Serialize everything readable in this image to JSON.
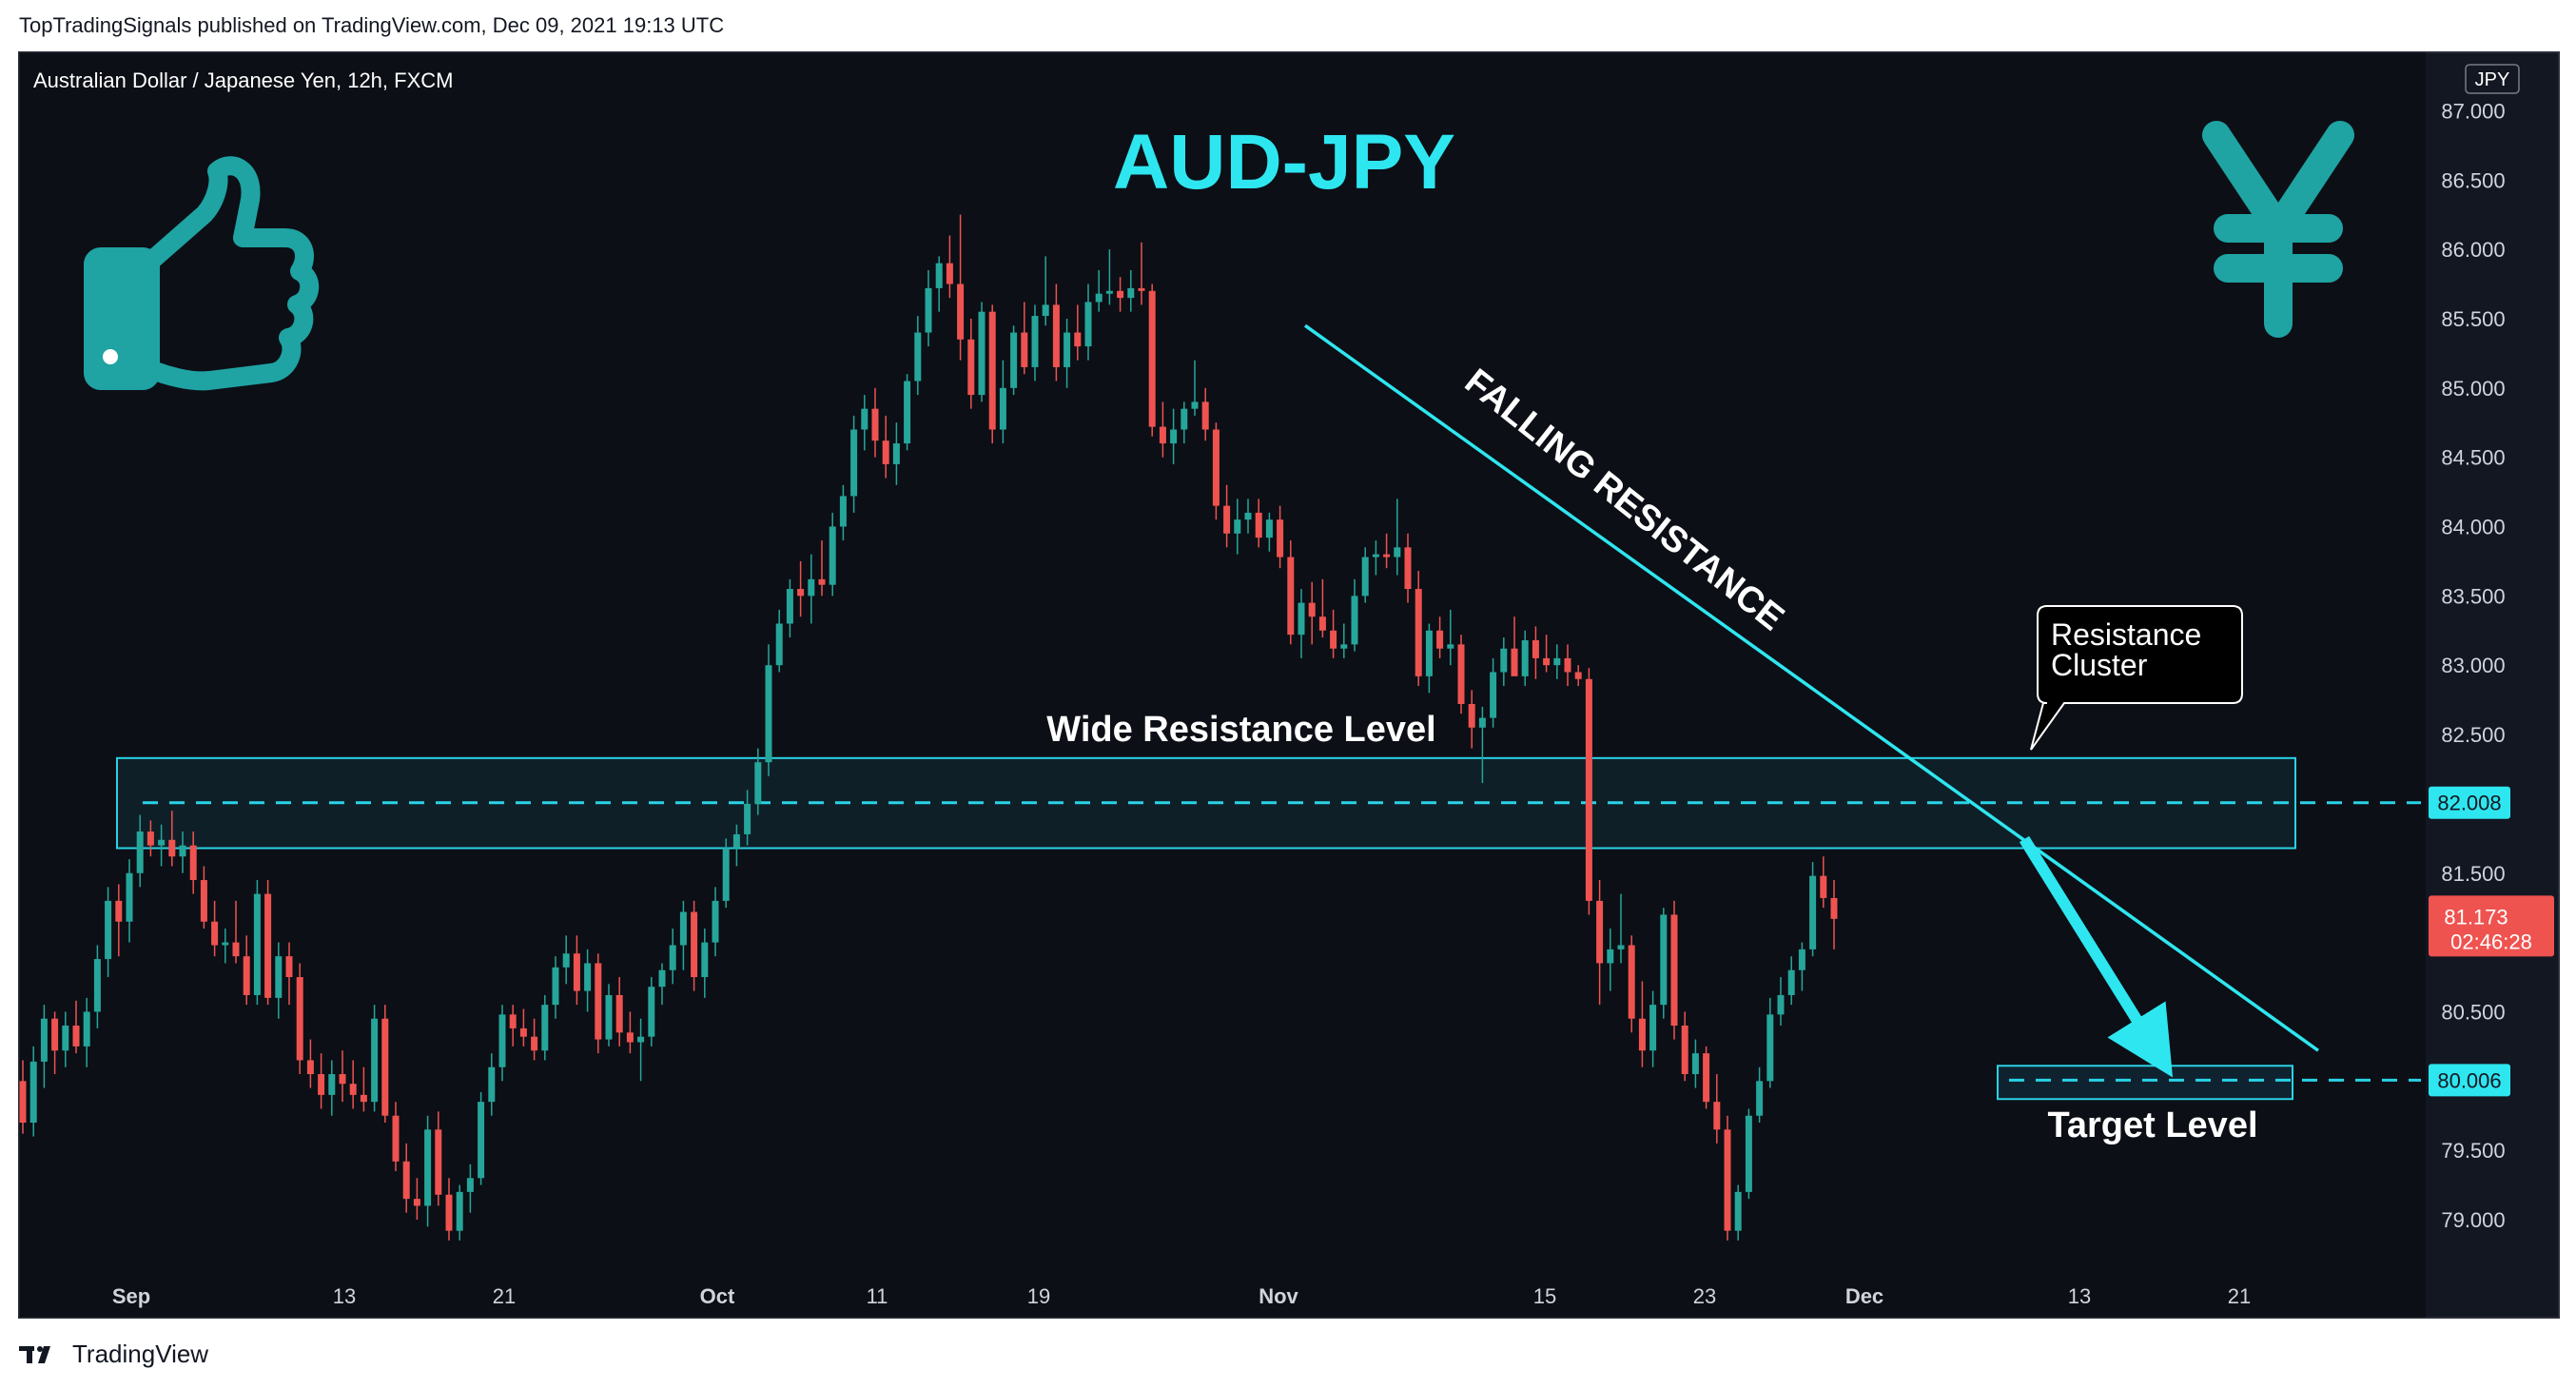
{
  "header": {
    "publish_note": "TopTradingSignals published on TradingView.com, Dec 09, 2021 19:13 UTC",
    "symbol_line": "Australian Dollar / Japanese Yen, 12h, FXCM",
    "currency_badge": "JPY"
  },
  "footer": {
    "brand": "TradingView"
  },
  "chart_data": {
    "type": "candlestick",
    "title": "AUD-JPY",
    "ylim": [
      78.7,
      87.2
    ],
    "y_ticks": [
      "87.000",
      "86.500",
      "86.000",
      "85.500",
      "85.000",
      "84.500",
      "84.000",
      "83.500",
      "83.000",
      "82.500",
      "81.500",
      "80.500",
      "79.500",
      "79.000"
    ],
    "x_ticks": [
      "Sep",
      "13",
      "21",
      "Oct",
      "11",
      "19",
      "Nov",
      "15",
      "23",
      "Dec",
      "13",
      "21"
    ],
    "price_labels": [
      {
        "value": 82.008,
        "text": "82.008",
        "style": "cyan"
      },
      {
        "value": 80.006,
        "text": "80.006",
        "style": "cyan"
      },
      {
        "value": 81.173,
        "text": "81.173",
        "sub": "02:46:28",
        "style": "red"
      }
    ],
    "annotations": {
      "falling_resistance": "FALLING RESISTANCE",
      "wide_resistance": "Wide Resistance Level",
      "resistance_cluster_1": "Resistance",
      "resistance_cluster_2": "Cluster",
      "target_level": "Target Level"
    },
    "zones": {
      "wide_resistance": {
        "top": 82.33,
        "bottom": 81.68,
        "line": 82.008
      },
      "target": {
        "top": 80.11,
        "bottom": 79.87,
        "line": 80.006
      }
    },
    "trendline": {
      "from": {
        "x": "Nov 02",
        "y": 85.45
      },
      "to": {
        "x": "Dec 23",
        "y": 80.22
      }
    },
    "candle_colors": {
      "up": "#26a69a",
      "down": "#ef5350",
      "accent": "#2ee6f0",
      "cyan_line": "#29d3e6"
    },
    "candles": [
      [
        80.0,
        80.15,
        79.62,
        79.7
      ],
      [
        79.7,
        80.25,
        79.6,
        80.14
      ],
      [
        80.14,
        80.55,
        79.95,
        80.45
      ],
      [
        80.45,
        80.5,
        80.05,
        80.22
      ],
      [
        80.22,
        80.5,
        80.1,
        80.4
      ],
      [
        80.4,
        80.58,
        80.2,
        80.25
      ],
      [
        80.25,
        80.6,
        80.1,
        80.5
      ],
      [
        80.5,
        80.98,
        80.38,
        80.88
      ],
      [
        80.88,
        81.4,
        80.75,
        81.3
      ],
      [
        81.3,
        81.42,
        80.9,
        81.15
      ],
      [
        81.15,
        81.6,
        81.0,
        81.5
      ],
      [
        81.5,
        81.92,
        81.4,
        81.8
      ],
      [
        81.8,
        81.88,
        81.62,
        81.7
      ],
      [
        81.7,
        81.85,
        81.55,
        81.74
      ],
      [
        81.74,
        81.95,
        81.55,
        81.62
      ],
      [
        81.62,
        81.8,
        81.5,
        81.7
      ],
      [
        81.7,
        81.8,
        81.35,
        81.45
      ],
      [
        81.45,
        81.55,
        81.1,
        81.15
      ],
      [
        81.15,
        81.3,
        80.9,
        80.98
      ],
      [
        80.98,
        81.1,
        80.85,
        81.0
      ],
      [
        81.0,
        81.3,
        80.85,
        80.9
      ],
      [
        80.9,
        81.05,
        80.55,
        80.62
      ],
      [
        80.62,
        81.45,
        80.55,
        81.35
      ],
      [
        81.35,
        81.45,
        80.55,
        80.6
      ],
      [
        80.6,
        81.0,
        80.45,
        80.9
      ],
      [
        80.9,
        81.0,
        80.55,
        80.75
      ],
      [
        80.75,
        80.85,
        80.05,
        80.15
      ],
      [
        80.15,
        80.3,
        79.95,
        80.05
      ],
      [
        80.05,
        80.2,
        79.8,
        79.9
      ],
      [
        79.9,
        80.15,
        79.75,
        80.05
      ],
      [
        80.05,
        80.22,
        79.85,
        79.98
      ],
      [
        79.98,
        80.15,
        79.8,
        79.9
      ],
      [
        79.9,
        80.1,
        79.78,
        79.85
      ],
      [
        79.85,
        80.55,
        79.78,
        80.45
      ],
      [
        80.45,
        80.55,
        79.7,
        79.75
      ],
      [
        79.75,
        79.85,
        79.35,
        79.42
      ],
      [
        79.42,
        79.55,
        79.05,
        79.15
      ],
      [
        79.15,
        79.3,
        79.0,
        79.1
      ],
      [
        79.1,
        79.75,
        78.95,
        79.65
      ],
      [
        79.65,
        79.78,
        79.1,
        79.18
      ],
      [
        79.18,
        79.3,
        78.85,
        78.92
      ],
      [
        78.92,
        79.25,
        78.85,
        79.2
      ],
      [
        79.2,
        79.4,
        79.05,
        79.3
      ],
      [
        79.3,
        79.92,
        79.25,
        79.85
      ],
      [
        79.85,
        80.2,
        79.75,
        80.1
      ],
      [
        80.1,
        80.55,
        80.0,
        80.48
      ],
      [
        80.48,
        80.55,
        80.25,
        80.38
      ],
      [
        80.38,
        80.52,
        80.25,
        80.32
      ],
      [
        80.32,
        80.45,
        80.15,
        80.22
      ],
      [
        80.22,
        80.62,
        80.15,
        80.55
      ],
      [
        80.55,
        80.9,
        80.45,
        80.82
      ],
      [
        80.82,
        81.05,
        80.7,
        80.92
      ],
      [
        80.92,
        81.05,
        80.55,
        80.65
      ],
      [
        80.65,
        80.95,
        80.5,
        80.85
      ],
      [
        80.85,
        80.92,
        80.2,
        80.3
      ],
      [
        80.3,
        80.7,
        80.25,
        80.62
      ],
      [
        80.62,
        80.75,
        80.25,
        80.35
      ],
      [
        80.35,
        80.5,
        80.2,
        80.28
      ],
      [
        80.28,
        80.45,
        80.0,
        80.32
      ],
      [
        80.32,
        80.75,
        80.25,
        80.68
      ],
      [
        80.68,
        80.85,
        80.55,
        80.8
      ],
      [
        80.8,
        81.1,
        80.7,
        80.98
      ],
      [
        80.98,
        81.3,
        80.8,
        81.22
      ],
      [
        81.22,
        81.3,
        80.65,
        80.75
      ],
      [
        80.75,
        81.1,
        80.6,
        81.0
      ],
      [
        81.0,
        81.4,
        80.9,
        81.3
      ],
      [
        81.3,
        81.75,
        81.25,
        81.68
      ],
      [
        81.68,
        81.85,
        81.55,
        81.78
      ],
      [
        81.78,
        82.1,
        81.7,
        82.0
      ],
      [
        82.0,
        82.4,
        81.92,
        82.3
      ],
      [
        82.3,
        83.15,
        82.2,
        83.0
      ],
      [
        83.0,
        83.4,
        82.95,
        83.3
      ],
      [
        83.3,
        83.62,
        83.2,
        83.55
      ],
      [
        83.55,
        83.75,
        83.35,
        83.5
      ],
      [
        83.5,
        83.8,
        83.3,
        83.62
      ],
      [
        83.62,
        83.9,
        83.5,
        83.58
      ],
      [
        83.58,
        84.1,
        83.5,
        84.0
      ],
      [
        84.0,
        84.3,
        83.9,
        84.22
      ],
      [
        84.22,
        84.8,
        84.1,
        84.7
      ],
      [
        84.7,
        84.95,
        84.55,
        84.85
      ],
      [
        84.85,
        85.0,
        84.5,
        84.62
      ],
      [
        84.62,
        84.8,
        84.35,
        84.45
      ],
      [
        84.45,
        84.75,
        84.3,
        84.6
      ],
      [
        84.6,
        85.1,
        84.55,
        85.05
      ],
      [
        85.05,
        85.52,
        84.95,
        85.4
      ],
      [
        85.4,
        85.85,
        85.3,
        85.72
      ],
      [
        85.72,
        85.95,
        85.55,
        85.9
      ],
      [
        85.9,
        86.1,
        85.65,
        85.75
      ],
      [
        85.75,
        86.25,
        85.2,
        85.35
      ],
      [
        85.35,
        85.5,
        84.85,
        84.95
      ],
      [
        84.95,
        85.62,
        84.9,
        85.55
      ],
      [
        85.55,
        85.6,
        84.6,
        84.7
      ],
      [
        84.7,
        85.2,
        84.6,
        85.0
      ],
      [
        85.0,
        85.45,
        84.95,
        85.4
      ],
      [
        85.4,
        85.62,
        85.1,
        85.15
      ],
      [
        85.15,
        85.6,
        85.05,
        85.52
      ],
      [
        85.52,
        85.95,
        85.45,
        85.6
      ],
      [
        85.6,
        85.75,
        85.05,
        85.15
      ],
      [
        85.15,
        85.5,
        85.0,
        85.4
      ],
      [
        85.4,
        85.6,
        85.2,
        85.3
      ],
      [
        85.3,
        85.75,
        85.2,
        85.62
      ],
      [
        85.62,
        85.85,
        85.55,
        85.68
      ],
      [
        85.68,
        86.0,
        85.6,
        85.7
      ],
      [
        85.7,
        85.8,
        85.55,
        85.65
      ],
      [
        85.65,
        85.85,
        85.55,
        85.72
      ],
      [
        85.72,
        86.05,
        85.6,
        85.7
      ],
      [
        85.7,
        85.75,
        84.65,
        84.72
      ],
      [
        84.72,
        84.9,
        84.5,
        84.6
      ],
      [
        84.6,
        84.85,
        84.45,
        84.7
      ],
      [
        84.7,
        84.9,
        84.6,
        84.85
      ],
      [
        84.85,
        85.2,
        84.8,
        84.9
      ],
      [
        84.9,
        85.0,
        84.62,
        84.7
      ],
      [
        84.7,
        84.75,
        84.05,
        84.15
      ],
      [
        84.15,
        84.3,
        83.85,
        83.95
      ],
      [
        83.95,
        84.2,
        83.8,
        84.05
      ],
      [
        84.05,
        84.2,
        83.95,
        84.1
      ],
      [
        84.1,
        84.2,
        83.85,
        83.92
      ],
      [
        83.92,
        84.1,
        83.82,
        84.05
      ],
      [
        84.05,
        84.15,
        83.7,
        83.78
      ],
      [
        83.78,
        83.9,
        83.15,
        83.22
      ],
      [
        83.22,
        83.55,
        83.05,
        83.45
      ],
      [
        83.45,
        83.6,
        83.15,
        83.35
      ],
      [
        83.35,
        83.62,
        83.2,
        83.25
      ],
      [
        83.25,
        83.4,
        83.05,
        83.12
      ],
      [
        83.12,
        83.3,
        83.05,
        83.15
      ],
      [
        83.15,
        83.62,
        83.1,
        83.5
      ],
      [
        83.5,
        83.85,
        83.45,
        83.78
      ],
      [
        83.78,
        83.9,
        83.65,
        83.8
      ],
      [
        83.8,
        83.95,
        83.7,
        83.78
      ],
      [
        83.78,
        84.2,
        83.65,
        83.85
      ],
      [
        83.85,
        83.95,
        83.45,
        83.55
      ],
      [
        83.55,
        83.68,
        82.85,
        82.92
      ],
      [
        82.92,
        83.3,
        82.8,
        83.25
      ],
      [
        83.25,
        83.35,
        83.05,
        83.12
      ],
      [
        83.12,
        83.4,
        83.0,
        83.15
      ],
      [
        83.15,
        83.22,
        82.65,
        82.72
      ],
      [
        82.72,
        82.82,
        82.4,
        82.55
      ],
      [
        82.55,
        82.7,
        82.15,
        82.62
      ],
      [
        82.62,
        83.05,
        82.55,
        82.95
      ],
      [
        82.95,
        83.2,
        82.85,
        83.12
      ],
      [
        83.12,
        83.35,
        83.0,
        82.92
      ],
      [
        82.92,
        83.25,
        82.85,
        83.18
      ],
      [
        83.18,
        83.28,
        82.9,
        83.05
      ],
      [
        83.05,
        83.22,
        82.95,
        83.0
      ],
      [
        83.0,
        83.15,
        82.9,
        83.05
      ],
      [
        83.05,
        83.15,
        82.85,
        82.95
      ],
      [
        82.95,
        83.0,
        82.85,
        82.9
      ],
      [
        82.9,
        82.98,
        81.2,
        81.3
      ],
      [
        81.3,
        81.45,
        80.55,
        80.85
      ],
      [
        80.85,
        81.1,
        80.65,
        80.95
      ],
      [
        80.95,
        81.35,
        80.85,
        80.98
      ],
      [
        80.98,
        81.05,
        80.35,
        80.45
      ],
      [
        80.45,
        80.72,
        80.1,
        80.22
      ],
      [
        80.22,
        80.65,
        80.1,
        80.55
      ],
      [
        80.55,
        81.25,
        80.45,
        81.2
      ],
      [
        81.2,
        81.3,
        80.3,
        80.4
      ],
      [
        80.4,
        80.5,
        80.0,
        80.05
      ],
      [
        80.05,
        80.3,
        79.95,
        80.2
      ],
      [
        80.2,
        80.25,
        79.8,
        79.85
      ],
      [
        79.85,
        80.05,
        79.55,
        79.65
      ],
      [
        79.65,
        79.75,
        78.85,
        78.92
      ],
      [
        78.92,
        79.25,
        78.85,
        79.2
      ],
      [
        79.2,
        79.8,
        79.15,
        79.75
      ],
      [
        79.75,
        80.1,
        79.7,
        80.0
      ],
      [
        80.0,
        80.6,
        79.95,
        80.48
      ],
      [
        80.48,
        80.75,
        80.4,
        80.62
      ],
      [
        80.62,
        80.9,
        80.55,
        80.8
      ],
      [
        80.8,
        81.0,
        80.65,
        80.95
      ],
      [
        80.95,
        81.58,
        80.9,
        81.48
      ],
      [
        81.48,
        81.62,
        81.25,
        81.32
      ],
      [
        81.32,
        81.45,
        80.95,
        81.17
      ]
    ]
  }
}
